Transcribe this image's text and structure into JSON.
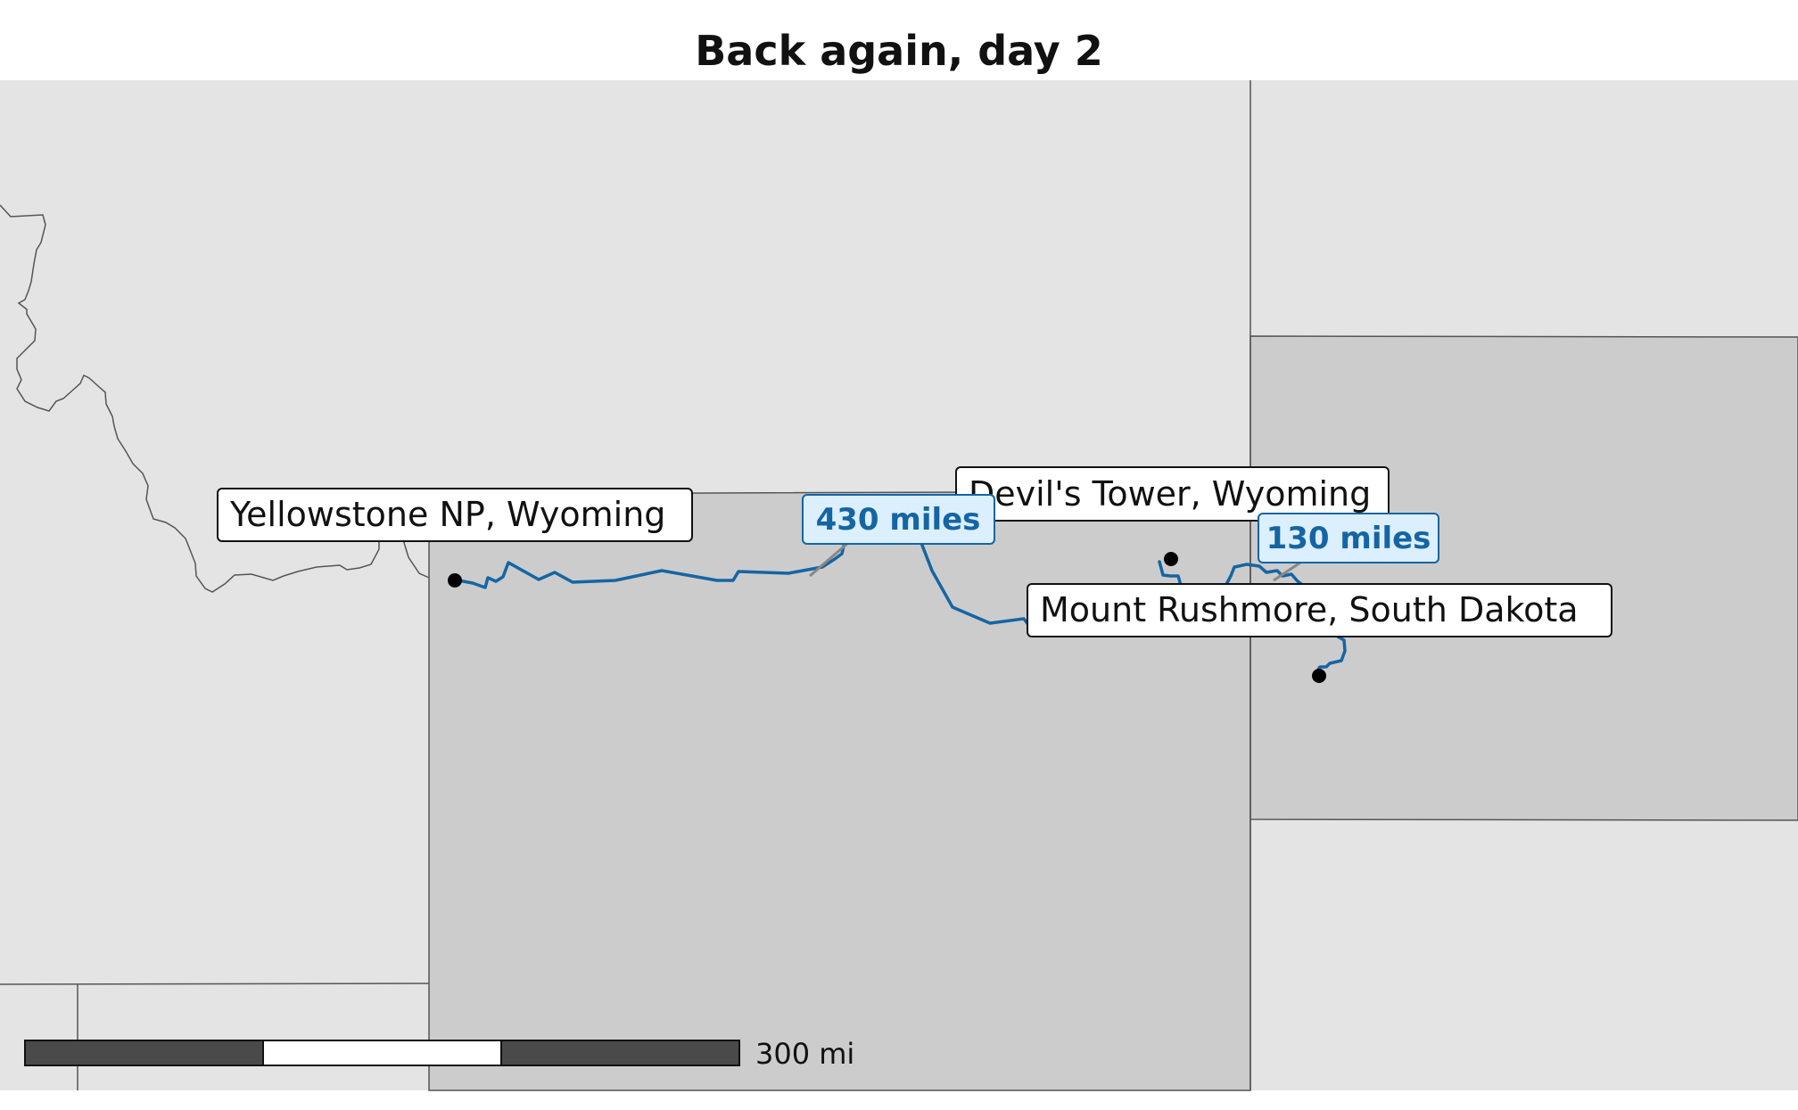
{
  "title": "Back again, day 2",
  "places": [
    {
      "name": "Yellowstone NP, Wyoming"
    },
    {
      "name": "Devil's Tower, Wyoming"
    },
    {
      "name": "Mount Rushmore, South Dakota"
    }
  ],
  "segments": [
    {
      "label": "430 miles"
    },
    {
      "label": "130 miles"
    }
  ],
  "scale_bar": {
    "label": "300 mi"
  },
  "colors": {
    "route": "#1565a3",
    "route_label_text": "#1565a3",
    "route_label_fill": "#dcefff",
    "highlight_state": "#cccccc",
    "other_state": "#e4e4e4",
    "border": "#555555",
    "marker": "#000000"
  }
}
